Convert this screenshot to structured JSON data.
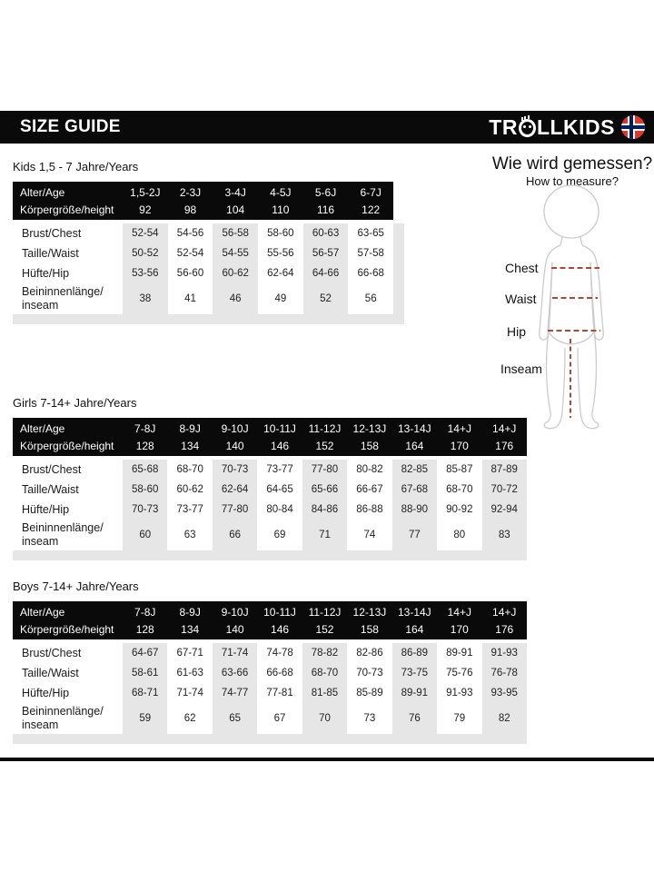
{
  "title_bar": {
    "title": "SIZE GUIDE",
    "brand_prefix": "TR",
    "brand_suffix": "LLKIDS"
  },
  "measure": {
    "heading_de": "Wie wird gemessen?",
    "heading_en": "How to measure?",
    "labels": {
      "chest": "Chest",
      "waist": "Waist",
      "hip": "Hip",
      "inseam": "Inseam"
    }
  },
  "colors": {
    "stripe": "#e6e6e6",
    "measure_line": "#b5452e",
    "flag_red": "#e0372e",
    "flag_blue": "#00205b"
  },
  "tables": [
    {
      "caption": "Kids 1,5 - 7 Jahre/Years",
      "header_rows": [
        {
          "label": "Alter/Age",
          "values": [
            "1,5-2J",
            "2-3J",
            "3-4J",
            "4-5J",
            "5-6J",
            "6-7J"
          ]
        },
        {
          "label": "Körpergröße/height",
          "values": [
            "92",
            "98",
            "104",
            "110",
            "116",
            "122"
          ]
        }
      ],
      "rows": [
        {
          "label": "Brust/Chest",
          "values": [
            "52-54",
            "54-56",
            "56-58",
            "58-60",
            "60-63",
            "63-65"
          ]
        },
        {
          "label": "Taille/Waist",
          "values": [
            "50-52",
            "52-54",
            "54-55",
            "55-56",
            "56-57",
            "57-58"
          ]
        },
        {
          "label": "Hüfte/Hip",
          "values": [
            "53-56",
            "56-60",
            "60-62",
            "62-64",
            "64-66",
            "66-68"
          ]
        },
        {
          "label": "Beininnenlänge/ inseam",
          "values": [
            "38",
            "41",
            "46",
            "49",
            "52",
            "56"
          ]
        }
      ]
    },
    {
      "caption": "Girls 7-14+ Jahre/Years",
      "header_rows": [
        {
          "label": "Alter/Age",
          "values": [
            "7-8J",
            "8-9J",
            "9-10J",
            "10-11J",
            "11-12J",
            "12-13J",
            "13-14J",
            "14+J",
            "14+J"
          ]
        },
        {
          "label": "Körpergröße/height",
          "values": [
            "128",
            "134",
            "140",
            "146",
            "152",
            "158",
            "164",
            "170",
            "176"
          ]
        }
      ],
      "rows": [
        {
          "label": "Brust/Chest",
          "values": [
            "65-68",
            "68-70",
            "70-73",
            "73-77",
            "77-80",
            "80-82",
            "82-85",
            "85-87",
            "87-89"
          ]
        },
        {
          "label": "Taille/Waist",
          "values": [
            "58-60",
            "60-62",
            "62-64",
            "64-65",
            "65-66",
            "66-67",
            "67-68",
            "68-70",
            "70-72"
          ]
        },
        {
          "label": "Hüfte/Hip",
          "values": [
            "70-73",
            "73-77",
            "77-80",
            "80-84",
            "84-86",
            "86-88",
            "88-90",
            "90-92",
            "92-94"
          ]
        },
        {
          "label": "Beininnenlänge/ inseam",
          "values": [
            "60",
            "63",
            "66",
            "69",
            "71",
            "74",
            "77",
            "80",
            "83"
          ]
        }
      ]
    },
    {
      "caption": "Boys 7-14+ Jahre/Years",
      "header_rows": [
        {
          "label": "Alter/Age",
          "values": [
            "7-8J",
            "8-9J",
            "9-10J",
            "10-11J",
            "11-12J",
            "12-13J",
            "13-14J",
            "14+J",
            "14+J"
          ]
        },
        {
          "label": "Körpergröße/height",
          "values": [
            "128",
            "134",
            "140",
            "146",
            "152",
            "158",
            "164",
            "170",
            "176"
          ]
        }
      ],
      "rows": [
        {
          "label": "Brust/Chest",
          "values": [
            "64-67",
            "67-71",
            "71-74",
            "74-78",
            "78-82",
            "82-86",
            "86-89",
            "89-91",
            "91-93"
          ]
        },
        {
          "label": "Taille/Waist",
          "values": [
            "58-61",
            "61-63",
            "63-66",
            "66-68",
            "68-70",
            "70-73",
            "73-75",
            "75-76",
            "76-78"
          ]
        },
        {
          "label": "Hüfte/Hip",
          "values": [
            "68-71",
            "71-74",
            "74-77",
            "77-81",
            "81-85",
            "85-89",
            "89-91",
            "91-93",
            "93-95"
          ]
        },
        {
          "label": "Beininnenlänge/ inseam",
          "values": [
            "59",
            "62",
            "65",
            "67",
            "70",
            "73",
            "76",
            "79",
            "82"
          ]
        }
      ]
    }
  ]
}
